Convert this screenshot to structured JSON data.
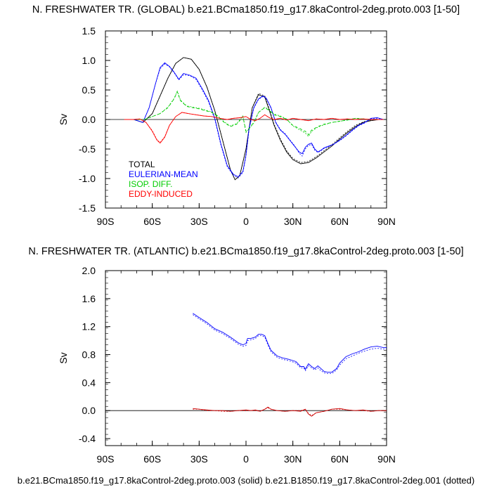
{
  "chart_data": [
    {
      "type": "line",
      "title": "N. FRESHWATER TR. (GLOBAL) b.e21.BCma1850.f19_g17.8kaControl-2deg.proto.003 [1-50]",
      "ylabel": "Sv",
      "xlim": [
        -90,
        90
      ],
      "ylim": [
        -1.5,
        1.5
      ],
      "xticks": [
        -90,
        -60,
        -30,
        0,
        30,
        60,
        90
      ],
      "xtick_labels": [
        "90S",
        "60S",
        "30S",
        "0",
        "30N",
        "60N",
        "90N"
      ],
      "yticks": [
        -1.5,
        -1.0,
        -0.5,
        0.0,
        0.5,
        1.0,
        1.5
      ],
      "ytick_labels": [
        "-1.5",
        "-1.0",
        "-0.5",
        "0.0",
        "0.5",
        "1.0",
        "1.5"
      ],
      "legend_position": "bottom-left",
      "series": [
        {
          "name": "TOTAL",
          "color": "#000000",
          "x": [
            -78,
            -72,
            -66,
            -60,
            -55,
            -50,
            -45,
            -40,
            -35,
            -30,
            -25,
            -20,
            -15,
            -10,
            -7,
            -4,
            0,
            4,
            8,
            12,
            15,
            18,
            22,
            26,
            30,
            35,
            40,
            45,
            50,
            55,
            60,
            65,
            70,
            75,
            80,
            85,
            88
          ],
          "y_solid": [
            0,
            0,
            -0.05,
            0.1,
            0.4,
            0.7,
            0.95,
            1.05,
            1.02,
            0.85,
            0.55,
            0.15,
            -0.35,
            -0.85,
            -1.02,
            -0.95,
            -0.5,
            0.2,
            0.42,
            0.38,
            0.15,
            -0.1,
            -0.35,
            -0.55,
            -0.68,
            -0.75,
            -0.73,
            -0.65,
            -0.55,
            -0.45,
            -0.33,
            -0.22,
            -0.12,
            -0.05,
            -0.02,
            0,
            0
          ],
          "y_dotted": [
            0,
            0,
            -0.05,
            0.1,
            0.4,
            0.7,
            0.95,
            1.05,
            1.02,
            0.85,
            0.55,
            0.15,
            -0.35,
            -0.85,
            -1.02,
            -0.95,
            -0.5,
            0.2,
            0.44,
            0.4,
            0.17,
            -0.08,
            -0.33,
            -0.53,
            -0.66,
            -0.73,
            -0.71,
            -0.63,
            -0.53,
            -0.43,
            -0.31,
            -0.2,
            -0.1,
            -0.04,
            -0.01,
            0,
            0
          ]
        },
        {
          "name": "EULERIAN-MEAN",
          "color": "#0000ff",
          "x": [
            -78,
            -72,
            -66,
            -62,
            -58,
            -55,
            -52,
            -49,
            -46,
            -43,
            -40,
            -36,
            -32,
            -28,
            -24,
            -20,
            -16,
            -12,
            -8,
            -5,
            -2,
            0,
            2,
            5,
            8,
            11,
            13,
            16,
            19,
            22,
            25,
            28,
            31,
            34,
            36,
            38,
            40,
            42,
            44,
            46,
            48,
            50,
            53,
            56,
            60,
            64,
            68,
            72,
            76,
            80,
            84,
            88
          ],
          "y_solid": [
            0,
            0,
            -0.05,
            0.2,
            0.6,
            0.88,
            0.96,
            0.9,
            0.8,
            0.68,
            0.78,
            0.75,
            0.7,
            0.52,
            0.32,
            0.02,
            -0.42,
            -0.78,
            -0.93,
            -0.97,
            -0.88,
            -0.6,
            -0.15,
            0.2,
            0.35,
            0.4,
            0.36,
            0.2,
            -0.05,
            -0.18,
            -0.25,
            -0.35,
            -0.45,
            -0.55,
            -0.58,
            -0.47,
            -0.42,
            -0.4,
            -0.5,
            -0.55,
            -0.52,
            -0.48,
            -0.45,
            -0.42,
            -0.35,
            -0.27,
            -0.18,
            -0.1,
            -0.05,
            0.02,
            0.03,
            0
          ],
          "y_dotted": [
            0,
            0,
            -0.05,
            0.2,
            0.6,
            0.86,
            0.94,
            0.89,
            0.79,
            0.67,
            0.76,
            0.74,
            0.68,
            0.5,
            0.3,
            0.0,
            -0.44,
            -0.8,
            -0.95,
            -0.99,
            -0.9,
            -0.62,
            -0.17,
            0.19,
            0.34,
            0.39,
            0.35,
            0.19,
            -0.04,
            -0.17,
            -0.24,
            -0.34,
            -0.44,
            -0.57,
            -0.62,
            -0.5,
            -0.44,
            -0.42,
            -0.52,
            -0.56,
            -0.53,
            -0.49,
            -0.46,
            -0.42,
            -0.36,
            -0.28,
            -0.19,
            -0.11,
            -0.06,
            0.01,
            0.02,
            0
          ]
        },
        {
          "name": "ISOP. DIFF.",
          "color": "#00cc00",
          "x": [
            -78,
            -70,
            -65,
            -60,
            -55,
            -50,
            -46,
            -44,
            -42,
            -38,
            -34,
            -30,
            -26,
            -22,
            -18,
            -14,
            -10,
            -6,
            -4,
            -2,
            0,
            2,
            5,
            8,
            12,
            15,
            18,
            22,
            26,
            30,
            34,
            38,
            40,
            42,
            46,
            50,
            55,
            60,
            65,
            70,
            75,
            80,
            85,
            88
          ],
          "y_solid": [
            0,
            0,
            0.0,
            0.05,
            0.1,
            0.2,
            0.35,
            0.47,
            0.32,
            0.22,
            0.2,
            0.18,
            0.15,
            0.12,
            0.05,
            -0.05,
            -0.12,
            -0.08,
            -0.02,
            0.05,
            -0.2,
            -0.15,
            -0.05,
            0.12,
            0.2,
            0.15,
            0.08,
            0.05,
            0.0,
            -0.1,
            -0.15,
            -0.2,
            -0.26,
            -0.18,
            -0.12,
            -0.08,
            -0.05,
            -0.03,
            -0.01,
            0.02,
            0.01,
            0,
            0,
            0
          ],
          "y_dotted": [
            0,
            0,
            0.0,
            0.05,
            0.1,
            0.21,
            0.36,
            0.48,
            0.33,
            0.23,
            0.21,
            0.19,
            0.16,
            0.13,
            0.06,
            -0.04,
            -0.11,
            -0.07,
            -0.01,
            0.06,
            -0.22,
            -0.16,
            -0.06,
            0.12,
            0.21,
            0.16,
            0.09,
            0.06,
            0.01,
            -0.11,
            -0.17,
            -0.23,
            -0.29,
            -0.2,
            -0.13,
            -0.09,
            -0.05,
            -0.03,
            -0.01,
            0.02,
            0.01,
            0,
            0,
            0
          ]
        },
        {
          "name": "EDDY-INDUCED",
          "color": "#ff0000",
          "x": [
            -78,
            -72,
            -68,
            -64,
            -60,
            -57,
            -55,
            -52,
            -49,
            -45,
            -41,
            -37,
            -32,
            -27,
            -22,
            -17,
            -12,
            -8,
            -4,
            0,
            3,
            6,
            9,
            12,
            15,
            18,
            22,
            26,
            30,
            35,
            40,
            45,
            50,
            55,
            60,
            65,
            70,
            75,
            80,
            85,
            88
          ],
          "y_solid": [
            0,
            0,
            0.01,
            -0.05,
            -0.2,
            -0.35,
            -0.4,
            -0.3,
            -0.1,
            0.05,
            0.12,
            0.1,
            0.08,
            0.06,
            0.05,
            0.02,
            0.0,
            0.02,
            0.03,
            0.05,
            0.0,
            -0.02,
            0.02,
            0.08,
            0.03,
            0.0,
            0.02,
            -0.01,
            0.02,
            0.0,
            -0.02,
            0.01,
            0.0,
            0.02,
            0.0,
            0.01,
            0.0,
            0.01,
            0.0,
            0.0,
            0
          ],
          "y_dotted": [
            0,
            0,
            0.01,
            -0.05,
            -0.19,
            -0.34,
            -0.39,
            -0.29,
            -0.1,
            0.05,
            0.12,
            0.1,
            0.08,
            0.06,
            0.05,
            0.02,
            0.0,
            0.02,
            0.03,
            0.05,
            0.0,
            -0.02,
            0.02,
            0.08,
            0.03,
            0.0,
            0.02,
            -0.01,
            0.02,
            0.0,
            -0.02,
            0.01,
            0.0,
            0.02,
            0.0,
            0.01,
            0.0,
            0.01,
            0.0,
            0.0,
            0
          ]
        }
      ]
    },
    {
      "type": "line",
      "title": "N. FRESHWATER TR. (ATLANTIC) b.e21.BCma1850.f19_g17.8kaControl-2deg.proto.003 [1-50]",
      "ylabel": "Sv",
      "xlim": [
        -90,
        90
      ],
      "ylim": [
        -0.5,
        2.0
      ],
      "xticks": [
        -90,
        -60,
        -30,
        0,
        30,
        60,
        90
      ],
      "xtick_labels": [
        "90S",
        "60S",
        "30S",
        "0",
        "30N",
        "60N",
        "90N"
      ],
      "yticks": [
        -0.4,
        0.0,
        0.4,
        0.8,
        1.2,
        1.6,
        2.0
      ],
      "ytick_labels": [
        "-0.4",
        "0.0",
        "0.4",
        "0.8",
        "1.2",
        "1.6",
        "2.0"
      ],
      "series": [
        {
          "color": "#0000ff",
          "x": [
            -34,
            -30,
            -25,
            -20,
            -15,
            -10,
            -5,
            -2,
            0,
            1,
            3,
            6,
            8,
            10,
            12,
            14,
            16,
            20,
            24,
            28,
            32,
            35,
            37,
            38,
            40,
            42,
            44,
            46,
            48,
            50,
            52,
            55,
            58,
            60,
            64,
            68,
            72,
            76,
            80,
            84,
            88,
            90
          ],
          "y_solid": [
            1.39,
            1.33,
            1.26,
            1.17,
            1.12,
            1.05,
            0.97,
            0.94,
            0.96,
            1.03,
            1.03,
            1.05,
            1.09,
            1.09,
            1.07,
            0.96,
            0.86,
            0.78,
            0.75,
            0.73,
            0.7,
            0.63,
            0.63,
            0.59,
            0.67,
            0.63,
            0.6,
            0.64,
            0.6,
            0.56,
            0.55,
            0.55,
            0.6,
            0.68,
            0.77,
            0.81,
            0.84,
            0.88,
            0.91,
            0.92,
            0.9,
            0.9
          ],
          "y_dotted": [
            1.37,
            1.31,
            1.24,
            1.15,
            1.1,
            1.03,
            0.95,
            0.92,
            0.93,
            1.0,
            1.01,
            1.03,
            1.07,
            1.07,
            1.05,
            0.94,
            0.84,
            0.76,
            0.73,
            0.71,
            0.68,
            0.61,
            0.61,
            0.57,
            0.64,
            0.61,
            0.58,
            0.61,
            0.57,
            0.54,
            0.53,
            0.53,
            0.58,
            0.65,
            0.74,
            0.78,
            0.82,
            0.85,
            0.88,
            0.89,
            0.88,
            0.88
          ]
        },
        {
          "color": "#cc0000",
          "x": [
            -34,
            -30,
            -25,
            -20,
            -15,
            -10,
            -5,
            0,
            3,
            6,
            9,
            12,
            14,
            16,
            20,
            25,
            30,
            35,
            38,
            40,
            42,
            45,
            50,
            55,
            60,
            65,
            70,
            75,
            80,
            85,
            90
          ],
          "y_solid": [
            0.03,
            0.02,
            0.01,
            0.0,
            0.0,
            -0.01,
            0.0,
            0.01,
            0.0,
            0.01,
            -0.01,
            0.02,
            0.05,
            0.02,
            0.0,
            -0.01,
            0.0,
            -0.01,
            0.02,
            -0.05,
            -0.08,
            -0.03,
            -0.01,
            0.02,
            0.03,
            0.01,
            0.0,
            0.01,
            -0.01,
            0.0,
            0.0
          ],
          "y_dotted": [
            0.02,
            0.02,
            0.0,
            0.0,
            -0.01,
            -0.01,
            0.0,
            0.0,
            0.0,
            0.0,
            -0.01,
            0.02,
            0.04,
            0.02,
            0.0,
            -0.01,
            0.0,
            0.0,
            0.02,
            -0.04,
            -0.07,
            -0.03,
            -0.01,
            0.02,
            0.02,
            0.01,
            0.0,
            0.0,
            -0.01,
            0.0,
            0.0
          ]
        }
      ]
    }
  ],
  "footer": "b.e21.BCma1850.f19_g17.8kaControl-2deg.proto.003 (solid) b.e21.B1850.f19_g17.8kaControl-2deg.001 (dotted)"
}
